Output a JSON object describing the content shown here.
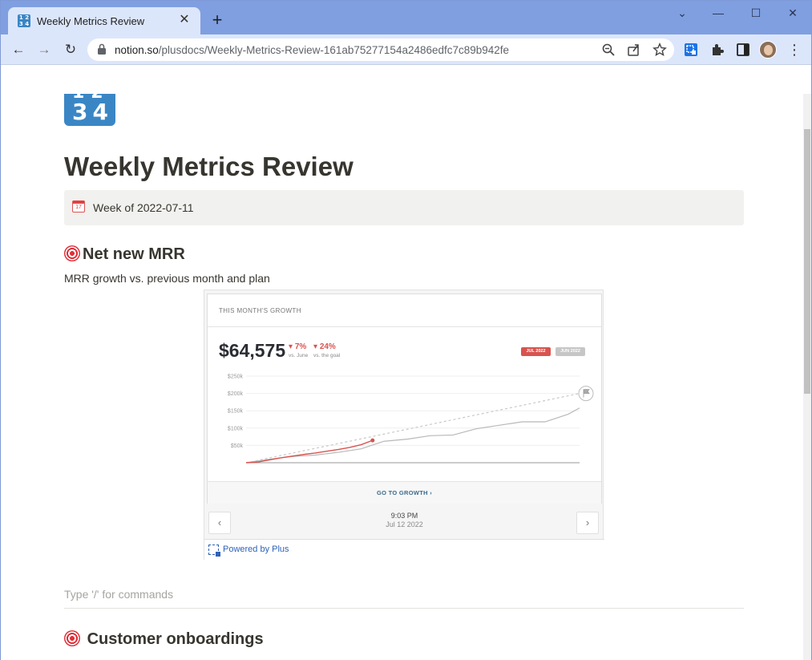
{
  "browser": {
    "tab_title": "Weekly Metrics Review",
    "url_host": "notion.so",
    "url_path": "/plusdocs/Weekly-Metrics-Review-161ab75277154a2486edfc7c89b942fe"
  },
  "page": {
    "title": "Weekly Metrics Review",
    "callout_text": "Week of 2022-07-11",
    "section1_heading": "Net new MRR",
    "section1_sub": "MRR growth vs. previous month and plan",
    "placeholder": "Type '/' for commands",
    "section2_heading": "Customer onboardings"
  },
  "embed": {
    "card_title": "THIS MONTH'S GROWTH",
    "amount": "$64,575",
    "delta_month": "7%",
    "delta_month_label": "vs. June",
    "delta_goal": "24%",
    "delta_goal_label": "vs. the goal",
    "pill_current": "JUL 2022",
    "pill_previous": "JUN 2022",
    "footer_link": "GO TO GROWTH",
    "snapshot_time": "9:03 PM",
    "snapshot_date": "Jul 12 2022",
    "powered_by": "Powered by Plus",
    "colors": {
      "current": "#d9534f",
      "previous": "#b8b8b8",
      "goal": "#c8c8c8"
    }
  },
  "chart_data": {
    "type": "line",
    "y_ticks": [
      "$250k",
      "$200k",
      "$150k",
      "$100k",
      "$50k"
    ],
    "ylim": [
      0,
      250000
    ],
    "x_days": [
      1,
      30
    ],
    "series": [
      {
        "name": "JUL 2022",
        "x": [
          1,
          2,
          3,
          4,
          5,
          6,
          7,
          8,
          9,
          10,
          11,
          12
        ],
        "y": [
          0,
          2000,
          8000,
          14000,
          19000,
          24000,
          28000,
          33000,
          38000,
          44000,
          52000,
          64575
        ]
      },
      {
        "name": "JUN 2022",
        "x": [
          1,
          3,
          5,
          7,
          9,
          11,
          13,
          15,
          17,
          19,
          21,
          23,
          25,
          27,
          29,
          30
        ],
        "y": [
          0,
          10000,
          18000,
          22000,
          30000,
          40000,
          62000,
          68000,
          78000,
          80000,
          98000,
          108000,
          118000,
          118000,
          140000,
          158000
        ]
      },
      {
        "name": "goal",
        "x": [
          1,
          30
        ],
        "y": [
          0,
          200000
        ]
      }
    ],
    "grid": true
  }
}
